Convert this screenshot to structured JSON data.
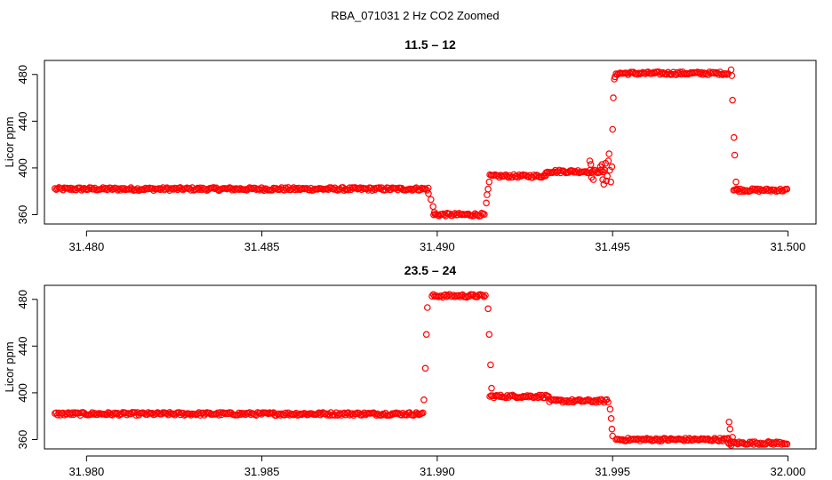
{
  "figure": {
    "title": "RBA_071031  2 Hz CO2 Zoomed"
  },
  "chart_data": [
    {
      "type": "scatter",
      "title": "11.5 – 12",
      "xlabel": "",
      "ylabel": "Licor ppm",
      "xlim": [
        31.4788,
        31.5008
      ],
      "ylim": [
        352,
        492
      ],
      "xticks": [
        31.48,
        31.485,
        31.49,
        31.495,
        31.5
      ],
      "xtick_labels": [
        "31.480",
        "31.485",
        "31.490",
        "31.495",
        "31.500"
      ],
      "yticks": [
        360,
        400,
        440,
        480
      ],
      "ytick_labels": [
        "360",
        "400",
        "440",
        "480"
      ],
      "grid": false,
      "marker": "open-circle",
      "color": "#ff0000",
      "segments": [
        {
          "x_start": 31.4791,
          "x_end": 31.48975,
          "y": 382
        },
        {
          "x_start": 31.4899,
          "x_end": 31.49135,
          "y": 360
        },
        {
          "x_start": 31.4915,
          "x_end": 31.4931,
          "y": 393
        },
        {
          "x_start": 31.4931,
          "x_end": 31.4948,
          "y": 397
        },
        {
          "x_start": 31.4951,
          "x_end": 31.4983,
          "y": 481
        },
        {
          "x_start": 31.49845,
          "x_end": 31.5,
          "y": 381
        }
      ],
      "points": [
        [
          31.48975,
          378
        ],
        [
          31.48982,
          373
        ],
        [
          31.48988,
          367
        ],
        [
          31.48992,
          362
        ],
        [
          31.4914,
          370
        ],
        [
          31.49142,
          377
        ],
        [
          31.49145,
          382
        ],
        [
          31.49148,
          388
        ],
        [
          31.49435,
          406
        ],
        [
          31.49438,
          403
        ],
        [
          31.4944,
          392
        ],
        [
          31.49445,
          390
        ],
        [
          31.49465,
          401
        ],
        [
          31.4947,
          403
        ],
        [
          31.49472,
          390
        ],
        [
          31.49475,
          386
        ],
        [
          31.4948,
          404
        ],
        [
          31.49482,
          389
        ],
        [
          31.49485,
          393
        ],
        [
          31.49488,
          406
        ],
        [
          31.4949,
          412
        ],
        [
          31.49492,
          398
        ],
        [
          31.49495,
          388
        ],
        [
          31.49498,
          401
        ],
        [
          31.495,
          433
        ],
        [
          31.49502,
          460
        ],
        [
          31.49505,
          476
        ],
        [
          31.49507,
          478
        ],
        [
          31.49838,
          484
        ],
        [
          31.4984,
          479
        ],
        [
          31.49842,
          458
        ],
        [
          31.49846,
          426
        ],
        [
          31.49848,
          411
        ],
        [
          31.49852,
          388
        ],
        [
          31.49855,
          382
        ]
      ]
    },
    {
      "type": "scatter",
      "title": "23.5 – 24",
      "xlabel": "",
      "ylabel": "Licor ppm",
      "xlim": [
        31.9788,
        32.0008
      ],
      "ylim": [
        352,
        492
      ],
      "xticks": [
        31.98,
        31.985,
        31.99,
        31.995,
        32.0
      ],
      "xtick_labels": [
        "31.980",
        "31.985",
        "31.990",
        "31.995",
        "32.000"
      ],
      "yticks": [
        360,
        400,
        440,
        480
      ],
      "ytick_labels": [
        "360",
        "400",
        "440",
        "480"
      ],
      "grid": false,
      "marker": "open-circle",
      "color": "#ff0000",
      "segments": [
        {
          "x_start": 31.9791,
          "x_end": 31.9896,
          "y": 382
        },
        {
          "x_start": 31.98985,
          "x_end": 31.9914,
          "y": 483
        },
        {
          "x_start": 31.9915,
          "x_end": 31.9932,
          "y": 397
        },
        {
          "x_start": 31.9932,
          "x_end": 31.9949,
          "y": 393
        },
        {
          "x_start": 31.9951,
          "x_end": 31.9983,
          "y": 360
        },
        {
          "x_start": 31.9983,
          "x_end": 32.0,
          "y": 357
        }
      ],
      "points": [
        [
          31.98962,
          394
        ],
        [
          31.98966,
          421
        ],
        [
          31.98969,
          450
        ],
        [
          31.98972,
          473
        ],
        [
          31.99145,
          472
        ],
        [
          31.99148,
          450
        ],
        [
          31.99152,
          424
        ],
        [
          31.99155,
          404
        ],
        [
          31.99493,
          386
        ],
        [
          31.99496,
          378
        ],
        [
          31.99498,
          369
        ],
        [
          31.995,
          363
        ],
        [
          31.99832,
          375
        ],
        [
          31.99835,
          369
        ],
        [
          31.99838,
          355
        ],
        [
          31.99842,
          362
        ]
      ]
    }
  ]
}
